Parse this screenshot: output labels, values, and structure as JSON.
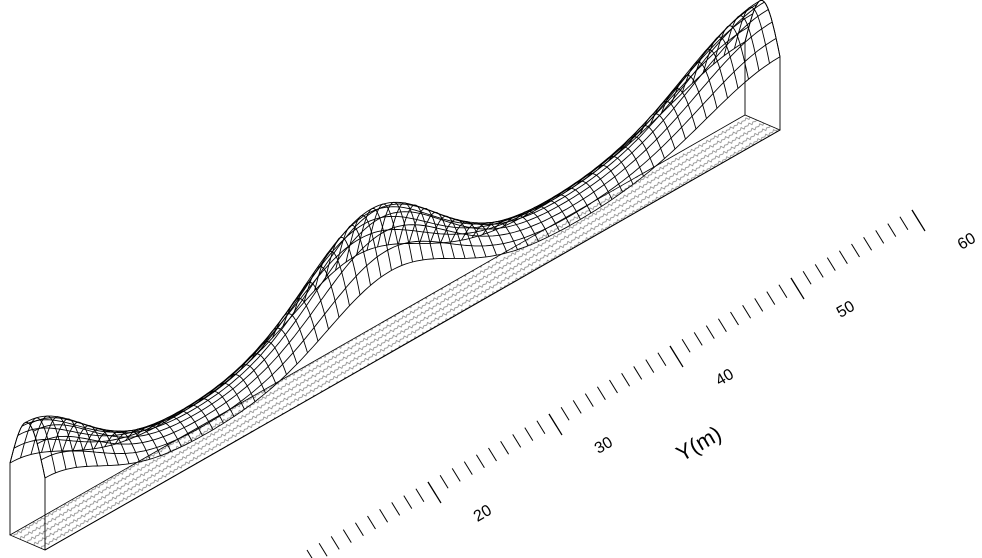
{
  "chart_data": {
    "type": "surface3d",
    "y_label": "Y(m)",
    "ylim": [
      10,
      60
    ],
    "yticks": [
      20,
      30,
      40,
      50,
      60
    ],
    "color": "#000000"
  }
}
